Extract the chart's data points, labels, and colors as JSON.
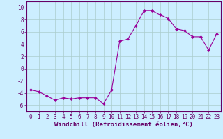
{
  "x": [
    0,
    1,
    2,
    3,
    4,
    5,
    6,
    7,
    8,
    9,
    10,
    11,
    12,
    13,
    14,
    15,
    16,
    17,
    18,
    19,
    20,
    21,
    22,
    23
  ],
  "y": [
    -3.5,
    -3.8,
    -4.5,
    -5.2,
    -4.8,
    -5.0,
    -4.8,
    -4.8,
    -4.8,
    -5.8,
    -3.5,
    4.5,
    4.8,
    7.0,
    9.5,
    9.5,
    8.8,
    8.2,
    6.5,
    6.2,
    5.2,
    5.2,
    3.0,
    5.7
  ],
  "line_color": "#990099",
  "marker": "D",
  "marker_size": 2,
  "bg_color": "#cceeff",
  "grid_color": "#aacccc",
  "xlabel": "Windchill (Refroidissement éolien,°C)",
  "ylim": [
    -7,
    11
  ],
  "xlim": [
    -0.5,
    23.5
  ],
  "yticks": [
    -6,
    -4,
    -2,
    0,
    2,
    4,
    6,
    8,
    10
  ],
  "xticks": [
    0,
    1,
    2,
    3,
    4,
    5,
    6,
    7,
    8,
    9,
    10,
    11,
    12,
    13,
    14,
    15,
    16,
    17,
    18,
    19,
    20,
    21,
    22,
    23
  ],
  "tick_fontsize": 5.5,
  "xlabel_fontsize": 6.5,
  "axis_color": "#660066",
  "spine_color": "#660066"
}
